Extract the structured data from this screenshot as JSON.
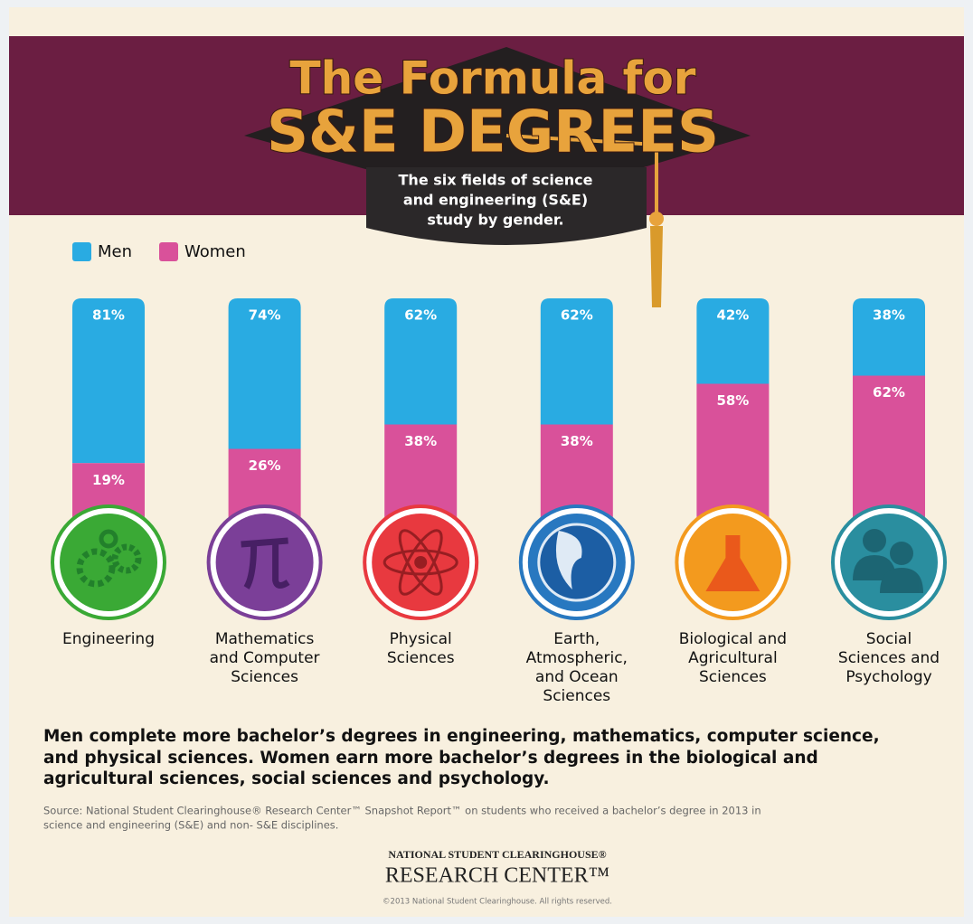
{
  "chart_data": {
    "type": "stacked_bar",
    "title": [
      "The Formula for",
      "S&E DEGREES"
    ],
    "subtitle": [
      "The six fields of science",
      "and engineering (S&E)",
      "study by gender."
    ],
    "categories": [
      [
        "Engineering"
      ],
      [
        "Mathematics",
        "and Computer",
        "Sciences"
      ],
      [
        "Physical",
        "Sciences"
      ],
      [
        "Earth,",
        "Atmospheric,",
        "and Ocean",
        "Sciences"
      ],
      [
        "Biological and",
        "Agricultural",
        "Sciences"
      ],
      [
        "Social",
        "Sciences and",
        "Psychology"
      ]
    ],
    "series": [
      {
        "name": "Men",
        "color": "#29abe2",
        "values": [
          81,
          74,
          62,
          62,
          42,
          38
        ],
        "value_labels": [
          "81%",
          "74%",
          "62%",
          "62%",
          "42%",
          "38%"
        ]
      },
      {
        "name": "Women",
        "color": "#d9519a",
        "values": [
          19,
          26,
          38,
          38,
          58,
          62
        ],
        "value_labels": [
          "19%",
          "26%",
          "38%",
          "38%",
          "58%",
          "62%"
        ]
      }
    ],
    "ylim": [
      0,
      100
    ],
    "legend": "top-left",
    "icon_colors": [
      "#3aa935",
      "#7b3f98",
      "#e8393f",
      "#2878c0",
      "#f39a1e",
      "#2a8e9f"
    ]
  },
  "footer": {
    "summary": [
      "Men complete more bachelor’s degrees in engineering, mathematics, computer science,",
      "and physical sciences. Women earn more bachelor’s degrees in the biological and",
      "agricultural sciences, social sciences and psychology."
    ],
    "source": [
      "Source: National Student Clearinghouse® Research Center™ Snapshot Report™ on students who received a bachelor’s degree in 2013 in",
      "science and engineering (S&E) and non- S&E disciplines."
    ],
    "logo": [
      "NATIONAL STUDENT CLEARINGHOUSE®",
      "RESEARCH CENTER™"
    ],
    "copyright": "©2013 National Student Clearinghouse. All rights reserved."
  }
}
